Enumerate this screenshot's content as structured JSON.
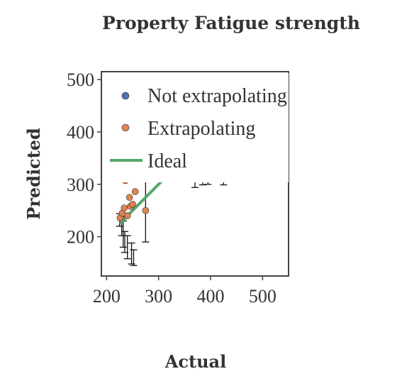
{
  "chart_data": {
    "type": "scatter",
    "title": "Property Fatigue strength",
    "xlabel": "Actual",
    "ylabel": "Predicted",
    "xlim": [
      190,
      550
    ],
    "ylim": [
      125,
      515
    ],
    "xticks": [
      200,
      300,
      400,
      500
    ],
    "yticks": [
      200,
      300,
      400,
      500
    ],
    "grid": false,
    "legend_position": "top-left",
    "series": [
      {
        "name": "Not extrapolating",
        "color": "#4c72b0",
        "points": [
          {
            "x": 225,
            "y": 232,
            "err": 12
          },
          {
            "x": 229,
            "y": 220,
            "err": 18
          },
          {
            "x": 232,
            "y": 205,
            "err": 25
          },
          {
            "x": 235,
            "y": 190,
            "err": 20
          },
          {
            "x": 240,
            "y": 180,
            "err": 22
          },
          {
            "x": 248,
            "y": 168,
            "err": 20
          },
          {
            "x": 252,
            "y": 160,
            "err": 15
          },
          {
            "x": 370,
            "y": 300,
            "err": 6
          },
          {
            "x": 385,
            "y": 305,
            "err": 6
          },
          {
            "x": 395,
            "y": 305,
            "err": 5
          },
          {
            "x": 425,
            "y": 305,
            "err": 6
          }
        ]
      },
      {
        "name": "Extrapolating",
        "color": "#dd8452",
        "points": [
          {
            "x": 226,
            "y": 236,
            "err": 0
          },
          {
            "x": 230,
            "y": 245,
            "err": 0
          },
          {
            "x": 234,
            "y": 255,
            "err": 0
          },
          {
            "x": 236,
            "y": 307,
            "err": 0
          },
          {
            "x": 240,
            "y": 240,
            "err": 0
          },
          {
            "x": 244,
            "y": 275,
            "err": 0
          },
          {
            "x": 246,
            "y": 258,
            "err": 0
          },
          {
            "x": 250,
            "y": 262,
            "err": 0
          },
          {
            "x": 255,
            "y": 286,
            "err": 0
          },
          {
            "x": 275,
            "y": 250,
            "err": 60
          }
        ]
      },
      {
        "name": "Ideal",
        "color": "#55a868",
        "type": "line",
        "x": [
          225,
          330
        ],
        "y": [
          225,
          330
        ]
      }
    ]
  }
}
